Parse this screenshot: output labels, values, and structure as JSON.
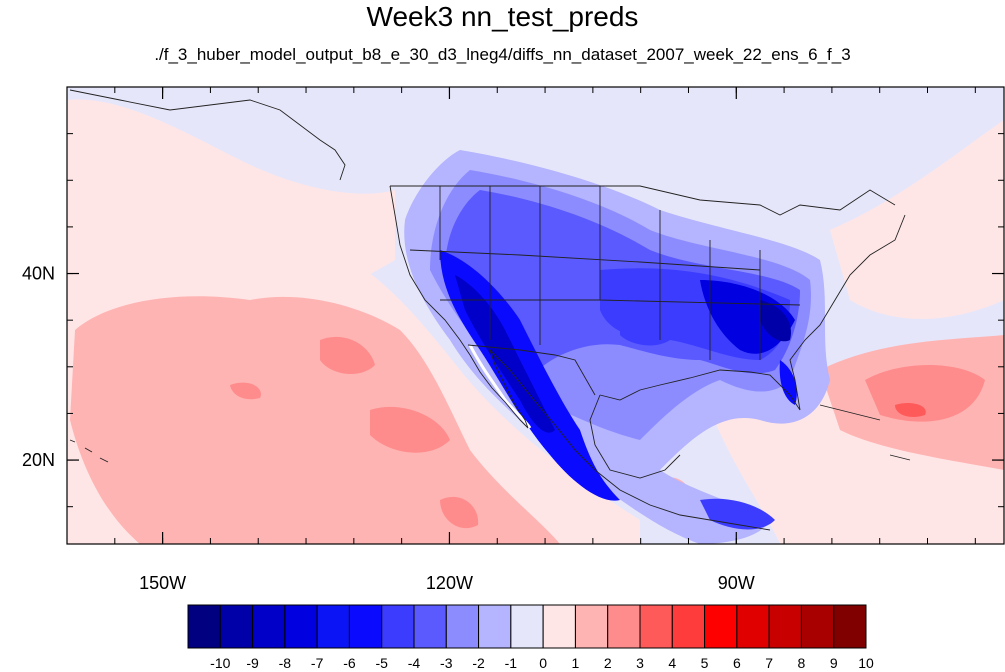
{
  "title": "Week3 nn_test_preds",
  "subtitle": "./f_3_huber_model_output_b8_e_30_d3_lneg4/diffs_nn_dataset_2007_week_22_ens_6_f_3",
  "map": {
    "lon_range": [
      -160,
      -62
    ],
    "lat_range": [
      11,
      60
    ],
    "lon_ticks": [
      {
        "value": -150,
        "label": "150W"
      },
      {
        "value": -120,
        "label": "120W"
      },
      {
        "value": -90,
        "label": "90W"
      }
    ],
    "lat_ticks": [
      {
        "value": 40,
        "label": "40N"
      },
      {
        "value": 20,
        "label": "20N"
      }
    ],
    "field": "temperature difference anomaly (blue = negative, red = positive)"
  },
  "colorbar": {
    "labels": [
      "-10",
      "-9",
      "-8",
      "-7",
      "-6",
      "-5",
      "-4",
      "-3",
      "-2",
      "-1",
      "0",
      "1",
      "2",
      "3",
      "4",
      "5",
      "6",
      "7",
      "8",
      "9",
      "10"
    ],
    "colors": [
      "#000080",
      "#0000a8",
      "#0000c8",
      "#0000e0",
      "#0a14f5",
      "#0a0aff",
      "#3c3cff",
      "#5a5aff",
      "#8c8cff",
      "#b4b4ff",
      "#e6e6fa",
      "#ffe6e6",
      "#ffb4b4",
      "#ff8c8c",
      "#ff5a5a",
      "#ff3c3c",
      "#ff0000",
      "#e00000",
      "#c80000",
      "#a80000",
      "#800000"
    ]
  }
}
